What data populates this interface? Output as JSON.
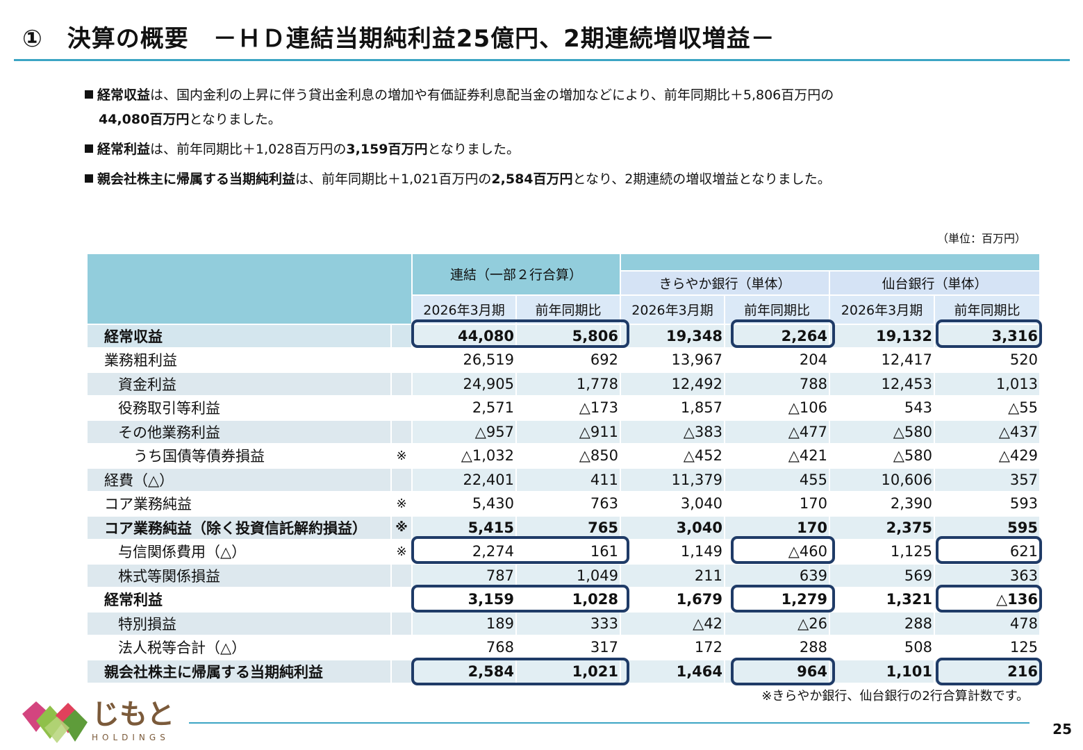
{
  "title": "①　決算の概要　－ＨＤ連結当期純利益25億円、2期連続増収増益－",
  "bullets": [
    {
      "b1": "経常収益",
      "t1": "は、国内金利の上昇に伴う貸出金利息の増加や有価証券利息配当金の増加などにより、前年同期比＋5,806百万円の",
      "b2": "44,080百万円",
      "t2": "となりました。"
    },
    {
      "b1": "経常利益",
      "t1": "は、前年同期比＋1,028百万円の",
      "b2": "3,159百万円",
      "t2": "となりました。"
    },
    {
      "b1": "親会社株主に帰属する当期純利益",
      "t1": "は、前年同期比＋1,021百万円の",
      "b2": "2,584百万円",
      "t2": "となり、2期連続の増収増益となりました。"
    }
  ],
  "unit": "（単位：百万円）",
  "table": {
    "group_consolidated": "連結（一部２行合算）",
    "group_kirayaka": "きらやか銀行（単体）",
    "group_sendai": "仙台銀行（単体）",
    "col_period": "2026年3月期",
    "col_yoy": "前年同期比",
    "rows": [
      {
        "label": "経常収益",
        "mark": "",
        "v": [
          "44,080",
          "5,806",
          "19,348",
          "2,264",
          "19,132",
          "3,316"
        ]
      },
      {
        "label": "業務粗利益",
        "mark": "",
        "v": [
          "26,519",
          "692",
          "13,967",
          "204",
          "12,417",
          "520"
        ]
      },
      {
        "label": "資金利益",
        "mark": "",
        "v": [
          "24,905",
          "1,778",
          "12,492",
          "788",
          "12,453",
          "1,013"
        ]
      },
      {
        "label": "役務取引等利益",
        "mark": "",
        "v": [
          "2,571",
          "△173",
          "1,857",
          "△106",
          "543",
          "△55"
        ]
      },
      {
        "label": "その他業務利益",
        "mark": "",
        "v": [
          "△957",
          "△911",
          "△383",
          "△477",
          "△580",
          "△437"
        ]
      },
      {
        "label": "うち国債等債券損益",
        "mark": "※",
        "v": [
          "△1,032",
          "△850",
          "△452",
          "△421",
          "△580",
          "△429"
        ]
      },
      {
        "label": "経費（△）",
        "mark": "",
        "v": [
          "22,401",
          "411",
          "11,379",
          "455",
          "10,606",
          "357"
        ]
      },
      {
        "label": "コア業務純益",
        "mark": "※",
        "v": [
          "5,430",
          "763",
          "3,040",
          "170",
          "2,390",
          "593"
        ]
      },
      {
        "label": "コア業務純益（除く投資信託解約損益）",
        "mark": "※",
        "v": [
          "5,415",
          "765",
          "3,040",
          "170",
          "2,375",
          "595"
        ]
      },
      {
        "label": "与信関係費用（△）",
        "mark": "※",
        "v": [
          "2,274",
          "161",
          "1,149",
          "△460",
          "1,125",
          "621"
        ]
      },
      {
        "label": "株式等関係損益",
        "mark": "",
        "v": [
          "787",
          "1,049",
          "211",
          "639",
          "569",
          "363"
        ]
      },
      {
        "label": "経常利益",
        "mark": "",
        "v": [
          "3,159",
          "1,028",
          "1,679",
          "1,279",
          "1,321",
          "△136"
        ]
      },
      {
        "label": "特別損益",
        "mark": "",
        "v": [
          "189",
          "333",
          "△42",
          "△26",
          "288",
          "478"
        ]
      },
      {
        "label": "法人税等合計（△）",
        "mark": "",
        "v": [
          "768",
          "317",
          "172",
          "288",
          "508",
          "125"
        ]
      },
      {
        "label": "親会社株主に帰属する当期純利益",
        "mark": "",
        "v": [
          "2,584",
          "1,021",
          "1,464",
          "964",
          "1,101",
          "216"
        ]
      }
    ]
  },
  "footnote": "※きらやか銀行、仙台銀行の2行合算計数です。",
  "logo": {
    "name": "じもと",
    "sub": "HOLDINGS"
  },
  "page_number": "25",
  "colors": {
    "accent": "#3ca5c4",
    "header": "#92cddc",
    "highlight": "#1f3b67"
  }
}
